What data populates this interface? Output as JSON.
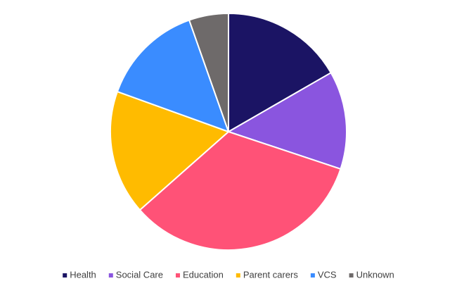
{
  "chart_data": {
    "type": "pie",
    "categories": [
      "Health",
      "Social Care",
      "Education",
      "Parent carers",
      "VCS",
      "Unknown"
    ],
    "values": [
      16.7,
      13.4,
      33.4,
      17,
      14.1,
      5.4
    ],
    "colors": [
      "#1b1464",
      "#8a55df",
      "#ff5277",
      "#ffbb00",
      "#3a8cff",
      "#6e6a6a"
    ],
    "legend": "bottom"
  }
}
